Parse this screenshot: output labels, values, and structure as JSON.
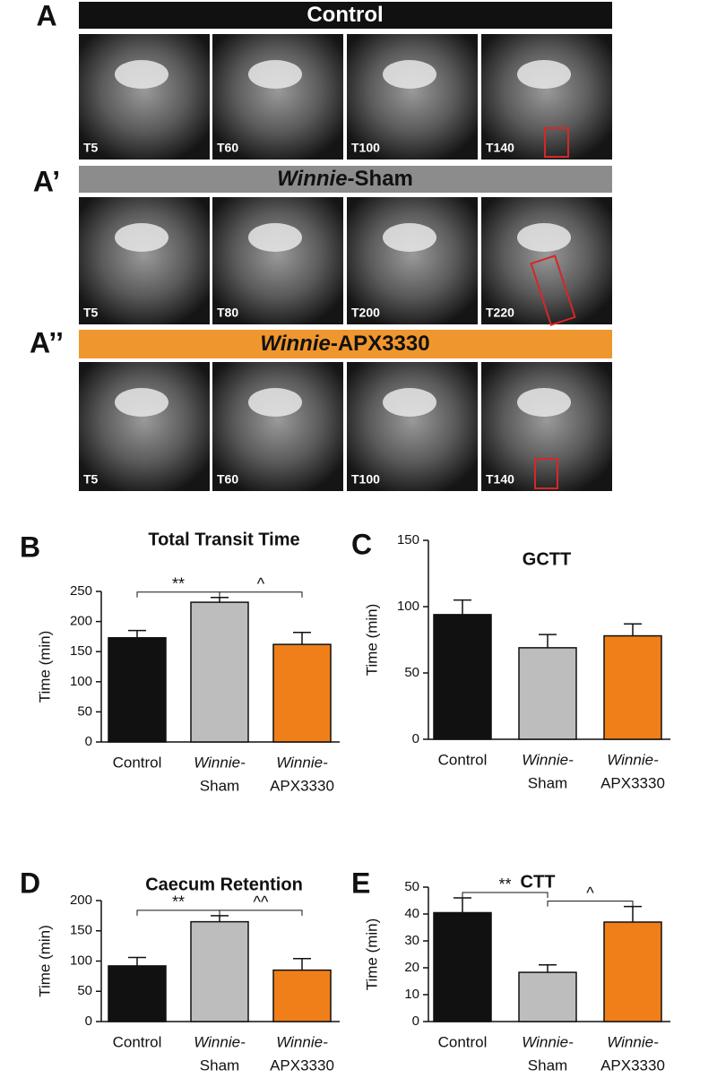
{
  "rows": [
    {
      "letter": "A",
      "title": [
        {
          "text": "Control",
          "italic": false
        }
      ],
      "color": "#111111",
      "text_color": "#ffffff",
      "times": [
        "T5",
        "T60",
        "T100",
        "T140"
      ]
    },
    {
      "letter": "A’",
      "title": [
        {
          "text": "Winnie",
          "italic": true
        },
        {
          "text": "-Sham",
          "italic": false
        }
      ],
      "color": "#8c8c8c",
      "text_color": "#111111",
      "times": [
        "T5",
        "T80",
        "T200",
        "T220"
      ]
    },
    {
      "letter": "A’’",
      "title": [
        {
          "text": "Winnie",
          "italic": true
        },
        {
          "text": "-APX3330",
          "italic": false
        }
      ],
      "color": "#f0962e",
      "text_color": "#111111",
      "times": [
        "T5",
        "T60",
        "T100",
        "T140"
      ]
    }
  ],
  "chart_data": [
    {
      "type": "bar",
      "panel": "B",
      "title": "Total Transit Time",
      "ylabel": "Time (min)",
      "categories": [
        "Control",
        [
          "Winnie-",
          "Sham"
        ],
        [
          "Winnie-",
          "APX3330"
        ]
      ],
      "values": [
        173,
        232,
        162
      ],
      "errors": [
        12,
        8,
        20
      ],
      "colors": [
        "#111111",
        "#bdbdbd",
        "#f07f1a"
      ],
      "ylim": [
        0,
        250
      ],
      "yticks": [
        0,
        50,
        100,
        150,
        200,
        250
      ],
      "annotations": [
        "**",
        "^"
      ]
    },
    {
      "type": "bar",
      "panel": "C",
      "title": "GCTT",
      "ylabel": "Time (min)",
      "categories": [
        "Control",
        [
          "Winnie-",
          "Sham"
        ],
        [
          "Winnie-",
          "APX3330"
        ]
      ],
      "values": [
        94,
        69,
        78
      ],
      "errors": [
        11,
        10,
        9
      ],
      "colors": [
        "#111111",
        "#bdbdbd",
        "#f07f1a"
      ],
      "ylim": [
        0,
        150
      ],
      "yticks": [
        0,
        50,
        100,
        150
      ]
    },
    {
      "type": "bar",
      "panel": "D",
      "title": "Caecum Retention",
      "ylabel": "Time (min)",
      "categories": [
        "Control",
        [
          "Winnie-",
          "Sham"
        ],
        [
          "Winnie-",
          "APX3330"
        ]
      ],
      "values": [
        92,
        165,
        85
      ],
      "errors": [
        14,
        10,
        19
      ],
      "colors": [
        "#111111",
        "#bdbdbd",
        "#f07f1a"
      ],
      "ylim": [
        0,
        200
      ],
      "yticks": [
        0,
        50,
        100,
        150,
        200
      ],
      "annotations": [
        "**",
        "^^"
      ]
    },
    {
      "type": "bar",
      "panel": "E",
      "title": "CTT",
      "ylabel": "Time (min)",
      "categories": [
        "Control",
        [
          "Winnie-",
          "Sham"
        ],
        [
          "Winnie-",
          "APX3330"
        ]
      ],
      "values": [
        40.5,
        18.3,
        37
      ],
      "errors": [
        5.5,
        2.8,
        5.8
      ],
      "colors": [
        "#111111",
        "#bdbdbd",
        "#f07f1a"
      ],
      "ylim": [
        0,
        50
      ],
      "yticks": [
        0,
        10,
        20,
        30,
        40,
        50
      ],
      "annotations": [
        "**",
        "^"
      ]
    }
  ]
}
